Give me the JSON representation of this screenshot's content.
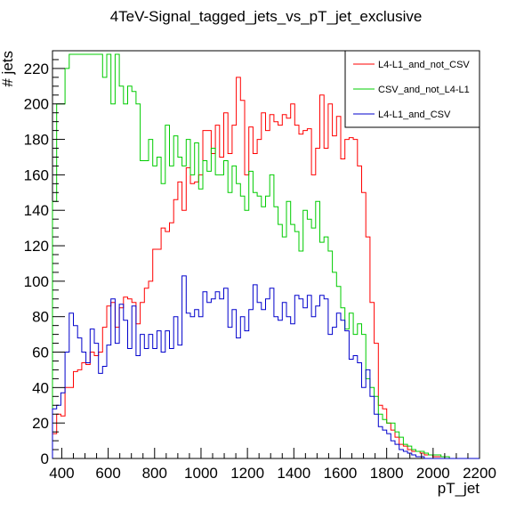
{
  "chart_data": {
    "type": "line",
    "title": "4TeV-Signal_tagged_jets_vs_pT_jet_exclusive",
    "xlabel": "pT_jet",
    "ylabel": "# jets",
    "xlim": [
      360,
      2200
    ],
    "ylim": [
      0,
      230
    ],
    "bin_edges": [
      360,
      378,
      396,
      414,
      432,
      450,
      468,
      486,
      504,
      522,
      540,
      558,
      576,
      594,
      612,
      630,
      648,
      666,
      684,
      702,
      720,
      738,
      756,
      774,
      792,
      810,
      828,
      846,
      864,
      882,
      900,
      918,
      936,
      954,
      972,
      990,
      1008,
      1026,
      1044,
      1062,
      1080,
      1098,
      1116,
      1134,
      1152,
      1170,
      1188,
      1206,
      1224,
      1242,
      1260,
      1278,
      1296,
      1314,
      1332,
      1350,
      1368,
      1386,
      1404,
      1422,
      1440,
      1458,
      1476,
      1494,
      1512,
      1530,
      1548,
      1566,
      1584,
      1602,
      1620,
      1638,
      1656,
      1674,
      1692,
      1710,
      1728,
      1746,
      1764,
      1782,
      1800,
      1818,
      1836,
      1854,
      1872,
      1890,
      1908,
      1926,
      1944,
      1962,
      1980,
      1998,
      2016,
      2034,
      2052,
      2070,
      2088,
      2106,
      2124,
      2142,
      2160,
      2178,
      2200
    ],
    "x_ticks": [
      400,
      600,
      800,
      1000,
      1200,
      1400,
      1600,
      1800,
      2000,
      2200
    ],
    "y_ticks": [
      0,
      20,
      40,
      60,
      80,
      100,
      120,
      140,
      160,
      180,
      200,
      220
    ],
    "series": [
      {
        "name": "L4-L1_and_not_CSV",
        "color": "#ff0000",
        "values": [
          14,
          25,
          24,
          40,
          40,
          49,
          50,
          54,
          53,
          60,
          58,
          60,
          74,
          86,
          88,
          74,
          85,
          91,
          90,
          88,
          76,
          88,
          96,
          100,
          118,
          118,
          130,
          128,
          133,
          146,
          156,
          140,
          164,
          155,
          156,
          160,
          185,
          185,
          172,
          188,
          170,
          195,
          172,
          188,
          215,
          202,
          160,
          187,
          172,
          180,
          195,
          185,
          194,
          190,
          188,
          194,
          192,
          200,
          188,
          183,
          185,
          186,
          160,
          175,
          205,
          175,
          200,
          182,
          193,
          169,
          180,
          181,
          180,
          165,
          150,
          125,
          88,
          65,
          30,
          28,
          20,
          16,
          12,
          8,
          7,
          5,
          4,
          4,
          3,
          2,
          2,
          1,
          1,
          1,
          1,
          0,
          0,
          0,
          0,
          0,
          0,
          0
        ]
      },
      {
        "name": "CSV_and_not_L4-L1",
        "color": "#00cc00",
        "values": [
          145,
          200,
          200,
          220,
          228,
          228,
          228,
          228,
          228,
          228,
          228,
          228,
          215,
          228,
          200,
          228,
          210,
          200,
          210,
          207,
          200,
          168,
          168,
          180,
          165,
          170,
          155,
          188,
          165,
          182,
          170,
          165,
          180,
          160,
          178,
          152,
          168,
          162,
          175,
          160,
          160,
          168,
          150,
          165,
          155,
          148,
          140,
          162,
          150,
          148,
          142,
          148,
          160,
          142,
          132,
          125,
          145,
          132,
          128,
          117,
          140,
          135,
          130,
          145,
          122,
          125,
          117,
          105,
          97,
          85,
          73,
          82,
          70,
          76,
          70,
          45,
          40,
          35,
          25,
          22,
          20,
          20,
          15,
          12,
          8,
          7,
          5,
          4,
          4,
          3,
          2,
          2,
          2,
          1,
          1,
          0,
          0,
          0,
          0,
          0,
          0,
          0
        ]
      },
      {
        "name": "L4-L1_and_CSV",
        "color": "#0000cc",
        "values": [
          28,
          30,
          37,
          60,
          82,
          75,
          68,
          60,
          54,
          73,
          65,
          48,
          52,
          64,
          90,
          65,
          87,
          78,
          62,
          86,
          58,
          70,
          62,
          70,
          62,
          72,
          60,
          72,
          62,
          80,
          64,
          103,
          82,
          80,
          84,
          80,
          94,
          88,
          90,
          94,
          90,
          96,
          74,
          84,
          68,
          80,
          72,
          84,
          98,
          88,
          84,
          90,
          96,
          80,
          78,
          88,
          80,
          76,
          92,
          90,
          85,
          92,
          80,
          86,
          92,
          90,
          70,
          74,
          82,
          78,
          72,
          56,
          58,
          54,
          40,
          50,
          35,
          25,
          18,
          16,
          14,
          10,
          8,
          5,
          4,
          3,
          2,
          1,
          1,
          0,
          0,
          0,
          0,
          0,
          0,
          0,
          0,
          0,
          0,
          0,
          0,
          0
        ]
      }
    ]
  }
}
